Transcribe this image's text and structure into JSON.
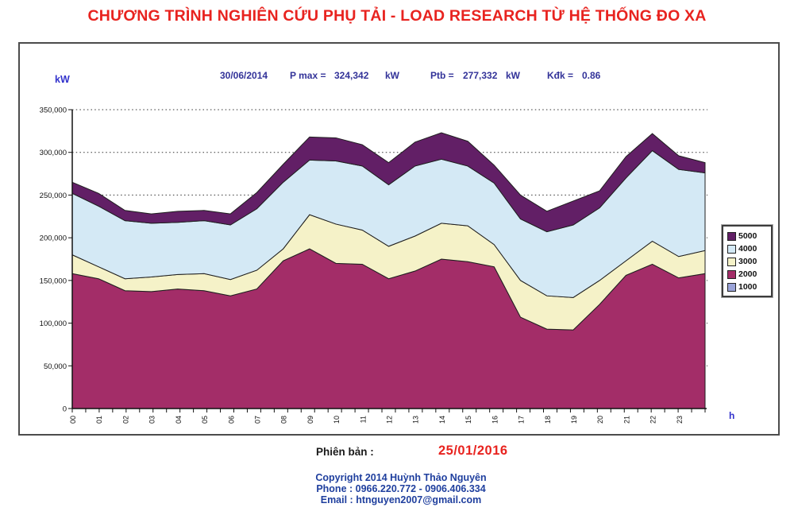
{
  "page": {
    "title": "CHƯƠNG TRÌNH NGHIÊN CỨU PHỤ TẢI - LOAD RESEARCH TỪ HỆ THỐNG ĐO XA"
  },
  "panel": {
    "header": {
      "date": "30/06/2014",
      "pmax_label": "P max =",
      "pmax_value": "324,342",
      "pmax_unit": "kW",
      "ptb_label": "Ptb =",
      "ptb_value": "277,332",
      "ptb_unit": "kW",
      "kdk_label": "Kđk =",
      "kdk_value": "0.86"
    }
  },
  "chart_data": {
    "type": "area",
    "stacked": true,
    "x_tick_labels": [
      "00",
      "01",
      "02",
      "03",
      "04",
      "05",
      "06",
      "07",
      "08",
      "09",
      "10",
      "11",
      "12",
      "13",
      "14",
      "15",
      "16",
      "17",
      "18",
      "19",
      "20",
      "21",
      "22",
      "23"
    ],
    "x_axis_label": "h",
    "y_axis_label": "kW",
    "y_tick_labels": [
      "350,000",
      "300,000",
      "250,000",
      "200,000",
      "150,000",
      "100,000",
      "50,000",
      "0"
    ],
    "ylim": [
      0,
      350000
    ],
    "values_unit": "kW",
    "grid": "dotted horizontal gridlines",
    "legend_position": "right",
    "x_note": "half-hourly curve estimated at hourly points; 25th value is the 23:30 end-of-day point",
    "series": [
      {
        "name": "1000",
        "color": "#9aa3d8",
        "values": [
          0,
          0,
          0,
          0,
          0,
          0,
          0,
          0,
          0,
          0,
          0,
          0,
          0,
          0,
          0,
          0,
          0,
          0,
          0,
          0,
          0,
          0,
          0,
          0,
          0
        ]
      },
      {
        "name": "2000",
        "color": "#a32d68",
        "values": [
          158000,
          152000,
          138000,
          137000,
          140000,
          138000,
          132000,
          140000,
          173000,
          187000,
          170000,
          169000,
          152000,
          161000,
          175000,
          172000,
          166000,
          107000,
          93000,
          92000,
          122000,
          156000,
          169000,
          153000,
          158000
        ]
      },
      {
        "name": "3000",
        "color": "#f5f2c8",
        "values": [
          22000,
          14000,
          14000,
          17000,
          17000,
          20000,
          19000,
          22000,
          14000,
          40000,
          46000,
          40000,
          38000,
          41000,
          42000,
          42000,
          26000,
          43000,
          39000,
          38000,
          28000,
          17000,
          27000,
          25000,
          27000
        ]
      },
      {
        "name": "4000",
        "color": "#d4e9f5",
        "values": [
          72000,
          71000,
          68000,
          63000,
          61000,
          62000,
          64000,
          72000,
          78000,
          64000,
          74000,
          75000,
          72000,
          82000,
          75000,
          70000,
          72000,
          72000,
          75000,
          85000,
          85000,
          97000,
          106000,
          102000,
          91000
        ]
      },
      {
        "name": "5000",
        "color": "#621f66",
        "values": [
          13000,
          15000,
          12000,
          11000,
          13000,
          12000,
          13000,
          19000,
          21000,
          27000,
          27000,
          25000,
          26000,
          28000,
          31000,
          29000,
          21000,
          28000,
          24000,
          28000,
          20000,
          25000,
          20000,
          16000,
          12000
        ]
      }
    ]
  },
  "footer": {
    "version_label": "Phiên bản :",
    "version_value": "25/01/2016",
    "copyright_line1": "Copyright 2014 Huỳnh Thảo Nguyên",
    "copyright_line2": "Phone : 0966.220.772 - 0906.406.334",
    "copyright_line3": "Email : htnguyen2007@gmail.com"
  },
  "colors": {
    "title_red": "#e8231f",
    "header_navy": "#333399",
    "axis_label_blue": "#3333cc",
    "copyright_navy": "#1f3f9e",
    "panel_border": "#4c4c4c",
    "area_outline": "#1f1f1f"
  }
}
